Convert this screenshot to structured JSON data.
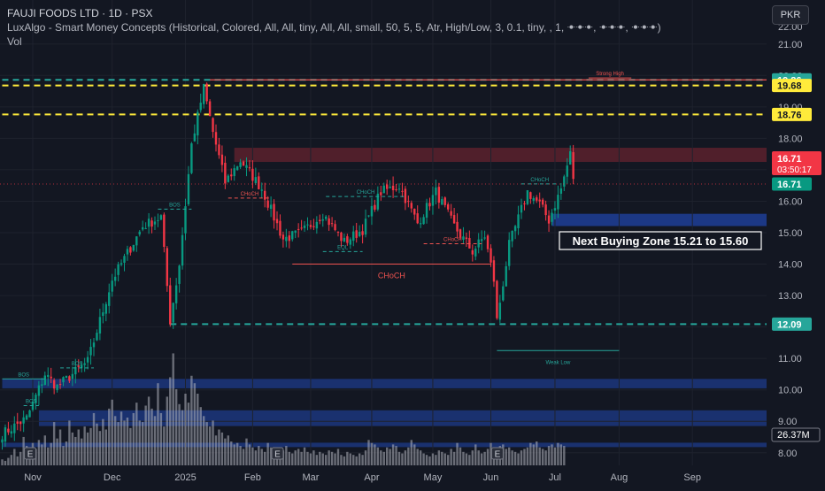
{
  "header": {
    "title": "FAUJI FOODS LTD · 1D · PSX",
    "indicator": "LuxAlgo - Smart Money Concepts (Historical, Colored, All, All, tiny, All, All, small, 50, 5, 5, Atr, High/Low, 3, 0.1, tiny, , 1, ꔹꔹꔹ, ꔹꔹꔹ, ꔹꔹꔹ)",
    "volume_label": "Vol"
  },
  "currency": "PKR",
  "chart_data": {
    "type": "candlestick",
    "symbol": "FAUJI FOODS LTD",
    "exchange": "PSX",
    "interval": "1D",
    "y_axis": {
      "min": 7.6,
      "max": 22.4,
      "tick_values": [
        8,
        9,
        10,
        11,
        12,
        13,
        14,
        15,
        16,
        17,
        18,
        19,
        20,
        21
      ],
      "tick_labels": [
        "8.00",
        "9.00",
        "10.00",
        "11.00",
        "12.00",
        "13.00",
        "14.00",
        "15.00",
        "16.00",
        "17.00",
        "18.00",
        "19.00",
        "20.00",
        "21.00"
      ],
      "top_partial_label": "22.00"
    },
    "x_axis": {
      "labels": [
        "Nov",
        "Dec",
        "2025",
        "Feb",
        "Mar",
        "Apr",
        "May",
        "Jun",
        "Jul",
        "Aug",
        "Sep"
      ],
      "label_bar_index": [
        10,
        36,
        60,
        82,
        101,
        121,
        141,
        160,
        181,
        202,
        226
      ]
    },
    "bar_count": 260,
    "last_price": "16.71",
    "countdown": "03:50:17",
    "price_badges": [
      {
        "text": "19.86",
        "value": 19.86,
        "color": "#26a69a"
      },
      {
        "text": "19.68",
        "value": 19.68,
        "color": "#ffeb3b"
      },
      {
        "text": "18.76",
        "value": 18.76,
        "color": "#ffeb3b"
      },
      {
        "text": "12.09",
        "value": 12.09,
        "color": "#26a69a"
      }
    ],
    "volume_badge": "26.37M",
    "close_badge": "16.71",
    "horizontal_levels": [
      {
        "value": 19.86,
        "color": "#26a69a",
        "style": "dashed",
        "from_bar": 0
      },
      {
        "value": 19.68,
        "color": "#ffeb3b",
        "style": "dashed",
        "from_bar": 0
      },
      {
        "value": 18.76,
        "color": "#ffeb3b",
        "style": "dashed",
        "from_bar": 0
      },
      {
        "value": 19.86,
        "color": "#ef5350",
        "style": "solid",
        "from_bar": 68
      },
      {
        "value": 12.09,
        "color": "#26a69a",
        "style": "dashed",
        "from_bar": 55
      }
    ],
    "zones": [
      {
        "top": 17.7,
        "bottom": 17.25,
        "from_bar": 76,
        "color": "#f23645",
        "opacity": 0.28
      },
      {
        "top": 15.6,
        "bottom": 15.21,
        "from_bar": 180,
        "color": "#2962ff",
        "opacity": 0.45
      },
      {
        "top": 10.35,
        "bottom": 10.05,
        "from_bar": 0,
        "color": "#2962ff",
        "opacity": 0.35
      },
      {
        "top": 9.35,
        "bottom": 8.85,
        "from_bar": 12,
        "color": "#2962ff",
        "opacity": 0.35
      },
      {
        "top": 8.32,
        "bottom": 8.18,
        "from_bar": 0,
        "color": "#2962ff",
        "opacity": 0.35
      }
    ],
    "structure_lines": [
      {
        "label": "BOS",
        "price": 10.35,
        "from_bar": 0,
        "to_bar": 14,
        "color": "#26a69a",
        "dash": false
      },
      {
        "label": "BOS",
        "price": 9.5,
        "from_bar": 7,
        "to_bar": 12,
        "color": "#26a69a",
        "dash": true
      },
      {
        "label": "BOS",
        "price": 10.7,
        "from_bar": 19,
        "to_bar": 30,
        "color": "#26a69a",
        "dash": true
      },
      {
        "label": "BOS",
        "price": 15.75,
        "from_bar": 51,
        "to_bar": 62,
        "color": "#26a69a",
        "dash": true
      },
      {
        "label": "CHoCH",
        "price": 16.1,
        "from_bar": 74,
        "to_bar": 88,
        "color": "#ef5350",
        "dash": true
      },
      {
        "label": "CHoCH",
        "price": 16.15,
        "from_bar": 106,
        "to_bar": 132,
        "color": "#26a69a",
        "dash": true
      },
      {
        "label": "EQL",
        "price": 14.4,
        "from_bar": 105,
        "to_bar": 118,
        "color": "#26a69a",
        "dash": true
      },
      {
        "label": "CHoCH",
        "price": 14.0,
        "from_bar": 95,
        "to_bar": 160,
        "color": "#ef5350",
        "dash": false
      },
      {
        "label": "CHoCH",
        "price": 14.65,
        "from_bar": 138,
        "to_bar": 157,
        "color": "#ef5350",
        "dash": true
      },
      {
        "label": "CHoCH",
        "price": 16.55,
        "from_bar": 170,
        "to_bar": 182,
        "color": "#26a69a",
        "dash": true
      },
      {
        "label": "Weak Low",
        "price": 11.25,
        "from_bar": 162,
        "to_bar": 202,
        "color": "#26a69a",
        "dash": false
      },
      {
        "label": "Strong High",
        "price": 19.92,
        "from_bar": 192,
        "to_bar": 206,
        "color": "#ef5350",
        "dash": false
      }
    ],
    "annotation": "Next Buying Zone 15.21 to 15.60",
    "anchors": [
      {
        "bar": 0,
        "price": 8.6
      },
      {
        "bar": 8,
        "price": 9.1
      },
      {
        "bar": 14,
        "price": 10.5
      },
      {
        "bar": 18,
        "price": 10.1
      },
      {
        "bar": 28,
        "price": 10.9
      },
      {
        "bar": 36,
        "price": 13.5
      },
      {
        "bar": 46,
        "price": 15.2
      },
      {
        "bar": 52,
        "price": 15.5
      },
      {
        "bar": 55,
        "price": 12.2
      },
      {
        "bar": 58,
        "price": 14.0
      },
      {
        "bar": 62,
        "price": 17.8
      },
      {
        "bar": 66,
        "price": 19.6
      },
      {
        "bar": 69,
        "price": 18.2
      },
      {
        "bar": 73,
        "price": 16.6
      },
      {
        "bar": 78,
        "price": 17.3
      },
      {
        "bar": 85,
        "price": 16.4
      },
      {
        "bar": 92,
        "price": 14.8
      },
      {
        "bar": 98,
        "price": 15.0
      },
      {
        "bar": 105,
        "price": 15.6
      },
      {
        "bar": 112,
        "price": 14.7
      },
      {
        "bar": 118,
        "price": 15.1
      },
      {
        "bar": 124,
        "price": 16.3
      },
      {
        "bar": 130,
        "price": 16.5
      },
      {
        "bar": 136,
        "price": 15.3
      },
      {
        "bar": 142,
        "price": 16.3
      },
      {
        "bar": 148,
        "price": 15.2
      },
      {
        "bar": 154,
        "price": 14.4
      },
      {
        "bar": 158,
        "price": 14.9
      },
      {
        "bar": 161,
        "price": 13.5
      },
      {
        "bar": 162,
        "price": 12.2
      },
      {
        "bar": 166,
        "price": 14.6
      },
      {
        "bar": 172,
        "price": 16.3
      },
      {
        "bar": 176,
        "price": 15.9
      },
      {
        "bar": 179,
        "price": 15.4
      },
      {
        "bar": 183,
        "price": 16.4
      },
      {
        "bar": 186,
        "price": 17.5
      },
      {
        "bar": 187,
        "price": 16.71
      }
    ],
    "volume": [
      8,
      6,
      10,
      14,
      22,
      12,
      18,
      38,
      26,
      16,
      30,
      22,
      34,
      28,
      40,
      24,
      30,
      58,
      36,
      48,
      26,
      32,
      60,
      44,
      38,
      48,
      36,
      52,
      44,
      50,
      70,
      56,
      46,
      62,
      48,
      76,
      88,
      66,
      58,
      72,
      60,
      64,
      50,
      70,
      84,
      60,
      58,
      80,
      92,
      76,
      66,
      110,
      70,
      52,
      92,
      118,
      150,
      102,
      82,
      74,
      96,
      84,
      120,
      110,
      96,
      78,
      66,
      58,
      52,
      60,
      40,
      48,
      44,
      36,
      40,
      32,
      28,
      30,
      26,
      22,
      36,
      28,
      24,
      20,
      26,
      22,
      18,
      30,
      24,
      20,
      18,
      22,
      20,
      26,
      18,
      16,
      20,
      22,
      18,
      24,
      18,
      16,
      20,
      14,
      18,
      16,
      14,
      20,
      18,
      16,
      22,
      14,
      12,
      18,
      16,
      14,
      12,
      16,
      14,
      20,
      34,
      30,
      28,
      24,
      20,
      18,
      24,
      22,
      28,
      26,
      18,
      16,
      20,
      24,
      34,
      28,
      22,
      20,
      16,
      14,
      12,
      16,
      14,
      20,
      18,
      16,
      14,
      22,
      18,
      30,
      24,
      18,
      16,
      14,
      20,
      28,
      20,
      16,
      18,
      22,
      30,
      24,
      22,
      26,
      28,
      22,
      24,
      20,
      18,
      16,
      20,
      22,
      24,
      30,
      28,
      32,
      24,
      22,
      20,
      26,
      28,
      24,
      30,
      28,
      26
    ],
    "earnings_markers_bar": [
      9,
      90,
      162
    ]
  }
}
